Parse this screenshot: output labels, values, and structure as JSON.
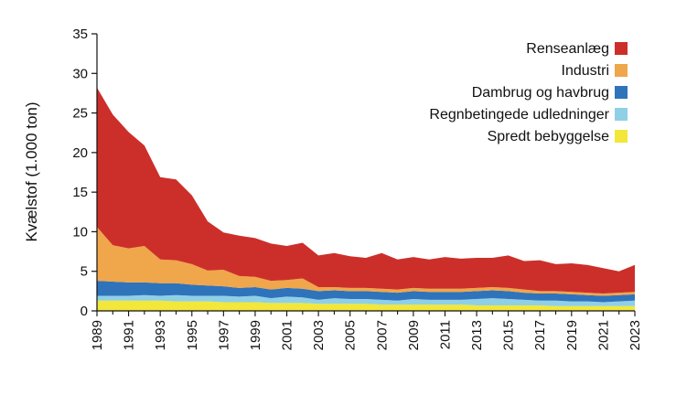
{
  "chart_data": {
    "type": "area",
    "stacked": true,
    "title": "",
    "xlabel": "",
    "ylabel": "Kvælstof (1.000 ton)",
    "xlim": [
      1989,
      2023
    ],
    "ylim": [
      0,
      35
    ],
    "yticks": [
      0,
      5,
      10,
      15,
      20,
      25,
      30,
      35
    ],
    "xticks": [
      1989,
      1991,
      1993,
      1995,
      1997,
      1999,
      2001,
      2003,
      2005,
      2007,
      2009,
      2011,
      2013,
      2015,
      2017,
      2019,
      2021,
      2023
    ],
    "grid": false,
    "legend_position": "top-right",
    "x": [
      1989,
      1990,
      1991,
      1992,
      1993,
      1994,
      1995,
      1996,
      1997,
      1998,
      1999,
      2000,
      2001,
      2002,
      2003,
      2004,
      2005,
      2006,
      2007,
      2008,
      2009,
      2010,
      2011,
      2012,
      2013,
      2014,
      2015,
      2016,
      2017,
      2018,
      2019,
      2020,
      2021,
      2022,
      2023
    ],
    "series": [
      {
        "name": "Spredt bebyggelse",
        "color": "#f2e73a",
        "values": [
          1.3,
          1.3,
          1.3,
          1.3,
          1.3,
          1.2,
          1.2,
          1.2,
          1.1,
          1.1,
          1.1,
          1.0,
          1.0,
          1.0,
          0.9,
          0.9,
          0.9,
          0.9,
          0.8,
          0.8,
          0.8,
          0.8,
          0.8,
          0.8,
          0.7,
          0.7,
          0.7,
          0.7,
          0.7,
          0.6,
          0.6,
          0.6,
          0.6,
          0.6,
          0.6
        ]
      },
      {
        "name": "Regnbetingede udledninger",
        "color": "#8fd0e6",
        "values": [
          0.6,
          0.6,
          0.6,
          0.7,
          0.6,
          0.8,
          0.7,
          0.7,
          0.8,
          0.7,
          0.8,
          0.6,
          0.8,
          0.7,
          0.5,
          0.7,
          0.6,
          0.6,
          0.6,
          0.5,
          0.7,
          0.6,
          0.6,
          0.6,
          0.8,
          0.9,
          0.8,
          0.7,
          0.6,
          0.7,
          0.6,
          0.6,
          0.5,
          0.6,
          0.7
        ]
      },
      {
        "name": "Dambrug og havbrug",
        "color": "#2f73bb",
        "values": [
          1.9,
          1.8,
          1.7,
          1.6,
          1.6,
          1.5,
          1.4,
          1.3,
          1.2,
          1.1,
          1.1,
          1.1,
          1.1,
          1.1,
          1.1,
          1.0,
          1.0,
          1.0,
          1.0,
          1.0,
          1.0,
          1.0,
          1.0,
          1.0,
          1.0,
          1.0,
          1.0,
          0.9,
          0.9,
          0.9,
          0.9,
          0.8,
          0.8,
          0.8,
          0.8
        ]
      },
      {
        "name": "Industri",
        "color": "#f0a64a",
        "values": [
          6.8,
          4.6,
          4.3,
          4.6,
          3.0,
          2.9,
          2.6,
          1.9,
          2.1,
          1.5,
          1.3,
          1.1,
          1.0,
          1.3,
          0.5,
          0.4,
          0.4,
          0.4,
          0.4,
          0.4,
          0.4,
          0.4,
          0.4,
          0.4,
          0.4,
          0.4,
          0.4,
          0.4,
          0.3,
          0.3,
          0.3,
          0.3,
          0.3,
          0.3,
          0.3
        ]
      },
      {
        "name": "Renseanlæg",
        "color": "#cc2f2a",
        "values": [
          17.6,
          16.5,
          14.7,
          12.7,
          10.4,
          10.2,
          8.7,
          6.2,
          4.7,
          5.1,
          4.9,
          4.7,
          4.3,
          4.5,
          4.0,
          4.3,
          4.0,
          3.8,
          4.5,
          3.8,
          3.9,
          3.7,
          4.0,
          3.8,
          3.8,
          3.7,
          4.1,
          3.6,
          3.9,
          3.4,
          3.6,
          3.5,
          3.2,
          2.7,
          3.4
        ]
      }
    ]
  }
}
